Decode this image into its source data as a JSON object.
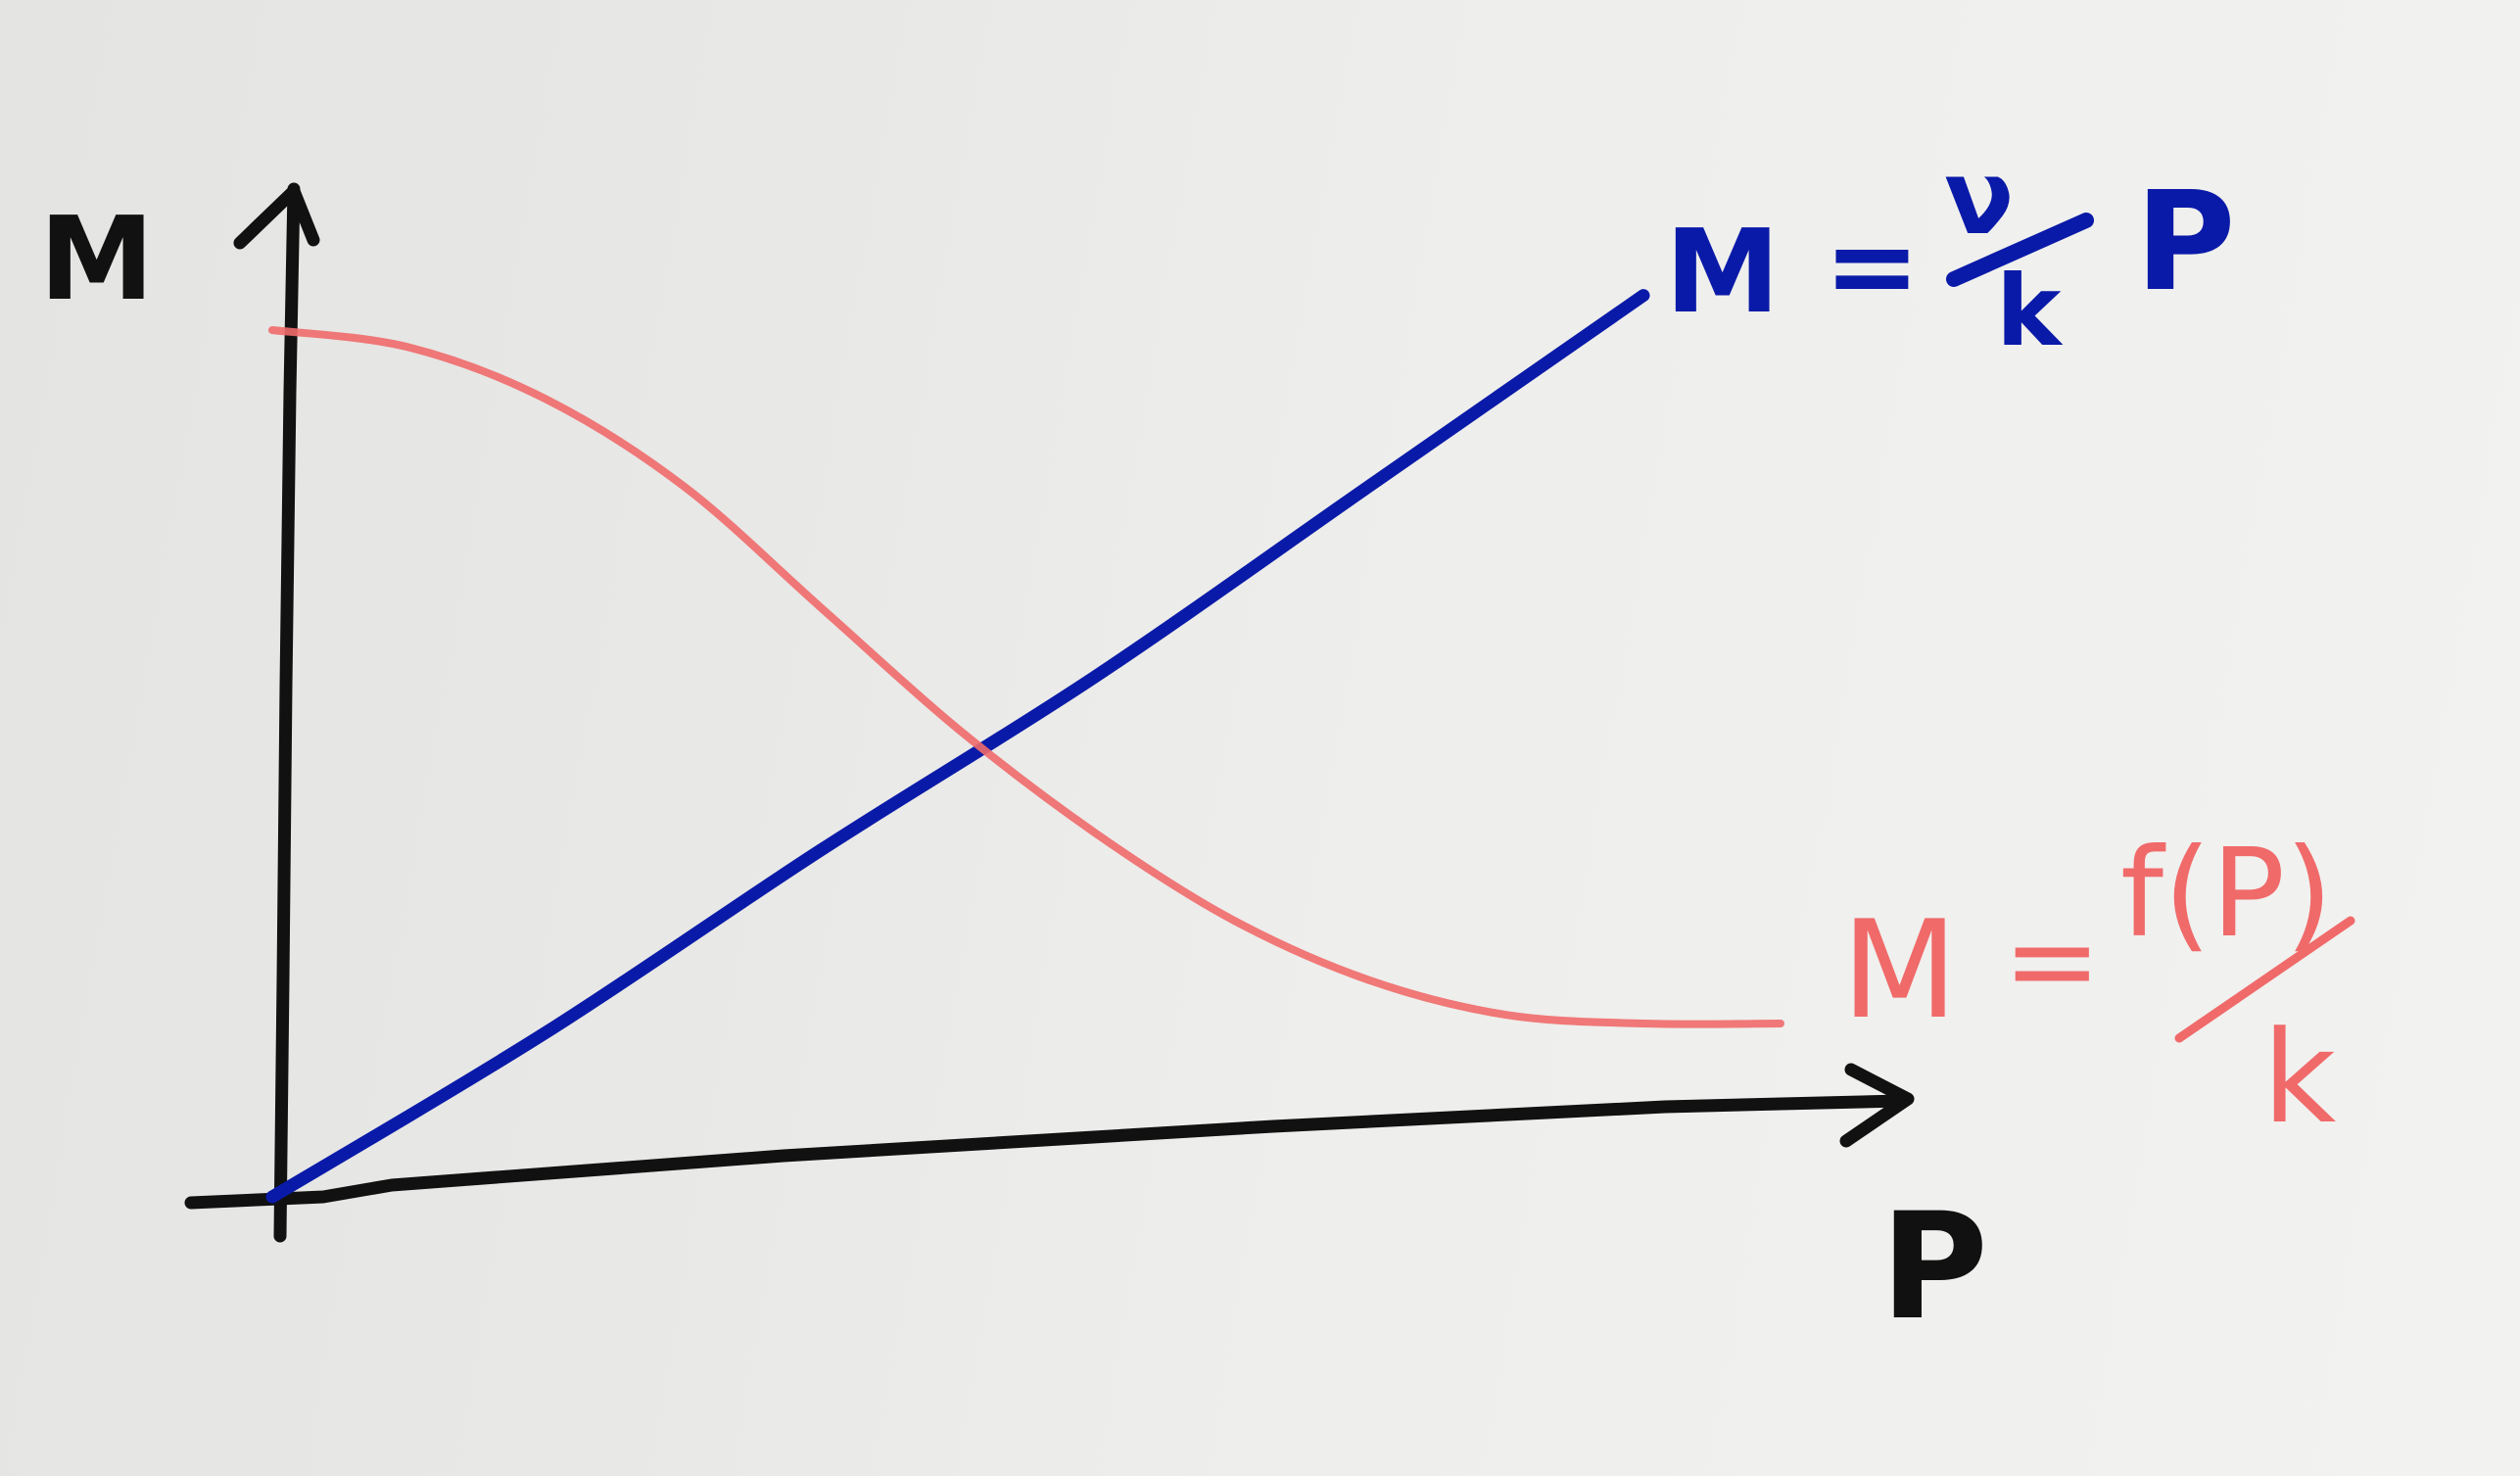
{
  "chart_data": {
    "type": "line",
    "title": "",
    "xlabel": "P",
    "ylabel": "M",
    "grid": false,
    "legend": "inline labels at line ends",
    "colors": {
      "axes": "#111111",
      "linear": "#0a1aa8",
      "decreasing": "#f06a6a"
    },
    "series": [
      {
        "label_lhs": "M",
        "label_eq": "=",
        "label_num": "ν",
        "label_den": "k",
        "label_rest": "P",
        "shape": "straight line through origin",
        "x": [
          0,
          0.2,
          0.4,
          0.6,
          0.8,
          1.0
        ],
        "y": [
          0,
          0.19,
          0.4,
          0.6,
          0.82,
          1.04
        ]
      },
      {
        "label_lhs": "M",
        "label_eq": "=",
        "label_num": "f(P)",
        "label_den": "k",
        "shape": "decreasing S-curve",
        "x": [
          0,
          0.1,
          0.2,
          0.3,
          0.4,
          0.5,
          0.6,
          0.7,
          0.8,
          0.9,
          1.0,
          1.1
        ],
        "y": [
          1.0,
          0.98,
          0.92,
          0.82,
          0.68,
          0.54,
          0.42,
          0.32,
          0.25,
          0.21,
          0.2,
          0.2
        ]
      }
    ]
  }
}
